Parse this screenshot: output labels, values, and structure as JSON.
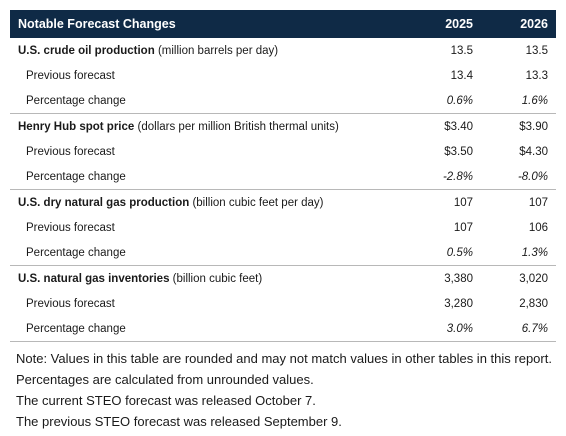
{
  "table": {
    "header": {
      "title": "Notable Forecast Changes",
      "year1": "2025",
      "year2": "2026"
    },
    "groups": [
      {
        "name": "U.S. crude oil production",
        "unit": "(million barrels per day)",
        "values": [
          "13.5",
          "13.5"
        ],
        "previous_label": "Previous forecast",
        "previous": [
          "13.4",
          "13.3"
        ],
        "pct_label": "Percentage change",
        "pct": [
          "0.6%",
          "1.6%"
        ]
      },
      {
        "name": "Henry Hub spot price",
        "unit": "(dollars per million British thermal units)",
        "values": [
          "$3.40",
          "$3.90"
        ],
        "previous_label": "Previous forecast",
        "previous": [
          "$3.50",
          "$4.30"
        ],
        "pct_label": "Percentage change",
        "pct": [
          "-2.8%",
          "-8.0%"
        ]
      },
      {
        "name": "U.S. dry natural gas production",
        "unit": "(billion cubic feet per day)",
        "values": [
          "107",
          "107"
        ],
        "previous_label": "Previous forecast",
        "previous": [
          "107",
          "106"
        ],
        "pct_label": "Percentage change",
        "pct": [
          "0.5%",
          "1.3%"
        ]
      },
      {
        "name": "U.S. natural gas inventories",
        "unit": "(billion cubic feet)",
        "values": [
          "3,380",
          "3,020"
        ],
        "previous_label": "Previous forecast",
        "previous": [
          "3,280",
          "2,830"
        ],
        "pct_label": "Percentage change",
        "pct": [
          "3.0%",
          "6.7%"
        ]
      }
    ]
  },
  "notes": [
    "Note: Values in this table are rounded and may not match values in other tables in this report. Percentages are calculated from unrounded values.",
    "The current STEO forecast was released October 7.",
    "The previous STEO forecast was released September 9."
  ],
  "colors": {
    "header_bg": "#0f2a46",
    "header_text": "#ffffff",
    "divider": "#b8b8b8"
  }
}
